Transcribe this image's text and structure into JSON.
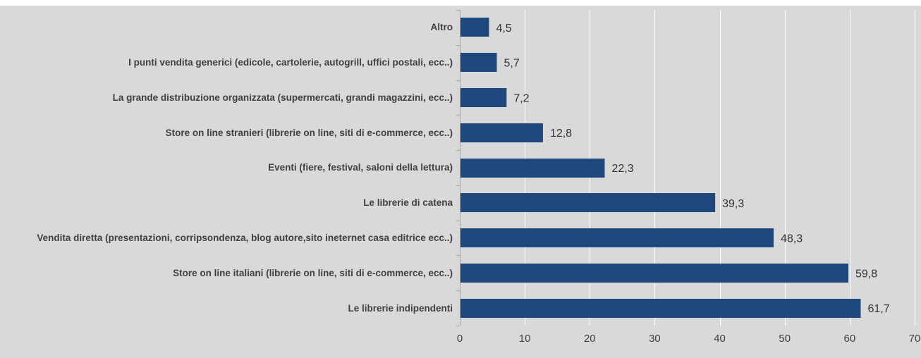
{
  "chart_data": {
    "type": "bar",
    "orientation": "horizontal",
    "categories": [
      "Altro",
      "I punti vendita generici (edicole, cartolerie, autogrill, uffici postali, ecc..)",
      "La grande distribuzione organizzata (supermercati, grandi magazzini, ecc..)",
      "Store on line stranieri (librerie on line, siti di e-commerce, ecc..)",
      "Eventi (fiere, festival, saloni della lettura)",
      "Le librerie di catena",
      "Vendita diretta (presentazioni, corripsondenza, blog autore,sito ineternet casa editrice ecc..)",
      "Store on line italiani (librerie on line, siti di e-commerce, ecc..)",
      "Le librerie indipendenti"
    ],
    "values": [
      4.5,
      5.7,
      7.2,
      12.8,
      22.3,
      39.3,
      48.3,
      59.8,
      61.7
    ],
    "value_labels": [
      "4,5",
      "5,7",
      "7,2",
      "12,8",
      "22,3",
      "39,3",
      "48,3",
      "59,8",
      "61,7"
    ],
    "xticks": [
      "0",
      "10",
      "20",
      "30",
      "40",
      "50",
      "60",
      "70"
    ],
    "xlim": [
      0,
      70
    ],
    "grid": true,
    "legend": "none",
    "title": "",
    "xlabel": "",
    "ylabel": "",
    "colors": {
      "bar": "#1f497d",
      "background": "#d9d9d9",
      "grid": "#ffffff"
    }
  }
}
